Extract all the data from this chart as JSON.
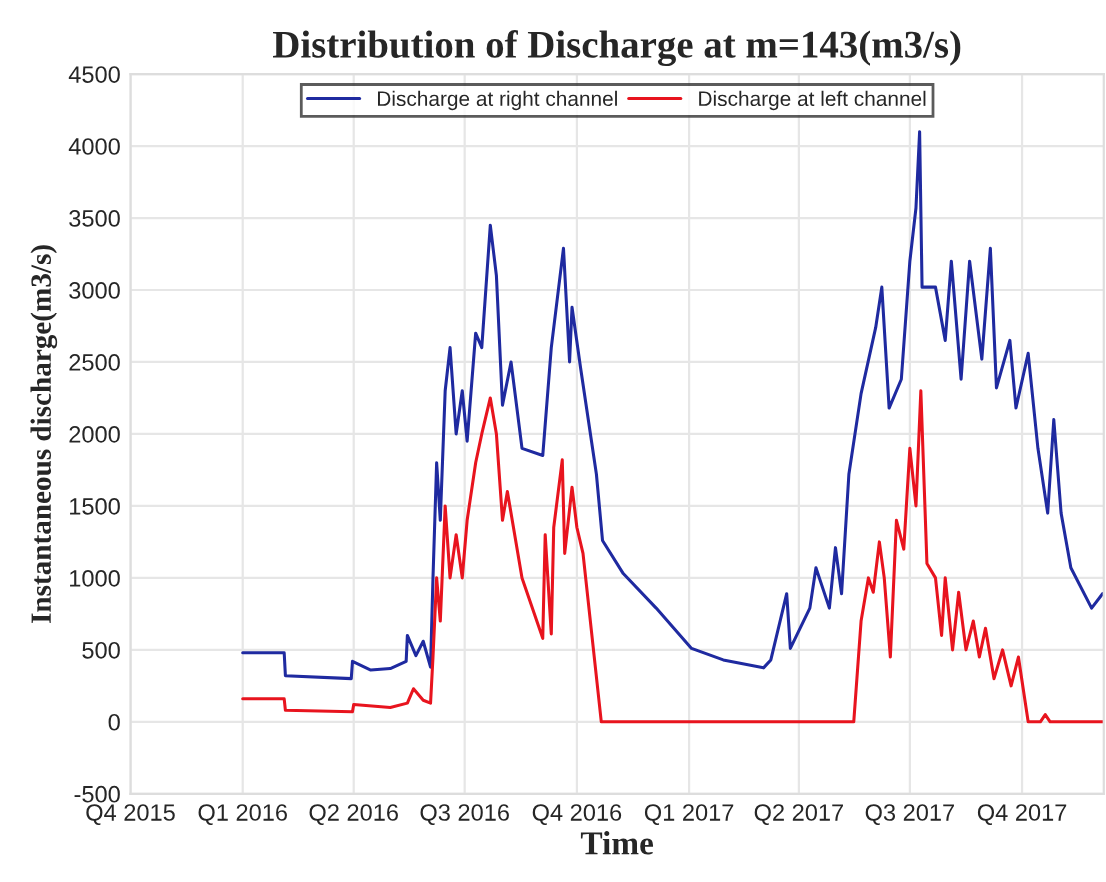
{
  "chart_data": {
    "type": "line",
    "title": "Distribution of Discharge at m=143(m3/s)",
    "xlabel": "Time",
    "ylabel": "Instantaneous discharge(m3/s)",
    "xlim": [
      "2015-10-01",
      "2017-12-07"
    ],
    "xticks": [
      {
        "value": "2015-10-01",
        "label": "Q4 2015"
      },
      {
        "value": "2016-01-01",
        "label": "Q1 2016"
      },
      {
        "value": "2016-04-01",
        "label": "Q2 2016"
      },
      {
        "value": "2016-07-01",
        "label": "Q3 2016"
      },
      {
        "value": "2016-10-01",
        "label": "Q4 2016"
      },
      {
        "value": "2017-01-01",
        "label": "Q1 2017"
      },
      {
        "value": "2017-04-01",
        "label": "Q2 2017"
      },
      {
        "value": "2017-07-01",
        "label": "Q3 2017"
      },
      {
        "value": "2017-10-01",
        "label": "Q4 2017"
      }
    ],
    "ylim": [
      -500,
      4500
    ],
    "yticks": [
      -500,
      0,
      500,
      1000,
      1500,
      2000,
      2500,
      3000,
      3500,
      4000,
      4500
    ],
    "grid": true,
    "legend": "top",
    "line_style": "solid",
    "marker": "none",
    "series": [
      {
        "name": "Discharge at right channel",
        "color": "#1f2aa0",
        "x": [
          "2016-01-01",
          "2016-02-04",
          "2016-02-05",
          "2016-03-30",
          "2016-03-31",
          "2016-04-15",
          "2016-05-01",
          "2016-05-14",
          "2016-05-15",
          "2016-05-22",
          "2016-05-28",
          "2016-06-03",
          "2016-06-05",
          "2016-06-08",
          "2016-06-11",
          "2016-06-15",
          "2016-06-19",
          "2016-06-24",
          "2016-06-29",
          "2016-07-03",
          "2016-07-10",
          "2016-07-15",
          "2016-07-22",
          "2016-07-27",
          "2016-08-01",
          "2016-08-08",
          "2016-08-17",
          "2016-09-03",
          "2016-09-10",
          "2016-09-20",
          "2016-09-25",
          "2016-09-27",
          "2016-10-04",
          "2016-10-17",
          "2016-10-22",
          "2016-11-08",
          "2016-12-05",
          "2017-01-03",
          "2017-01-29",
          "2017-03-03",
          "2017-03-09",
          "2017-03-22",
          "2017-03-25",
          "2017-04-10",
          "2017-04-15",
          "2017-04-26",
          "2017-05-01",
          "2017-05-06",
          "2017-05-12",
          "2017-05-22",
          "2017-06-03",
          "2017-06-08",
          "2017-06-14",
          "2017-06-24",
          "2017-07-01",
          "2017-07-06",
          "2017-07-09",
          "2017-07-11",
          "2017-07-22",
          "2017-07-30",
          "2017-08-04",
          "2017-08-12",
          "2017-08-19",
          "2017-08-29",
          "2017-09-05",
          "2017-09-10",
          "2017-09-21",
          "2017-09-26",
          "2017-10-06",
          "2017-10-14",
          "2017-10-22",
          "2017-10-27",
          "2017-11-02",
          "2017-11-10",
          "2017-11-27",
          "2017-12-06"
        ],
        "values": [
          480,
          480,
          320,
          300,
          420,
          360,
          370,
          420,
          600,
          460,
          560,
          380,
          1000,
          1800,
          1400,
          2300,
          2600,
          2000,
          2300,
          1950,
          2700,
          2600,
          3450,
          3100,
          2200,
          2500,
          1900,
          1850,
          2600,
          3290,
          2500,
          2880,
          2460,
          1720,
          1260,
          1030,
          790,
          510,
          430,
          375,
          430,
          890,
          510,
          790,
          1070,
          790,
          1210,
          890,
          1720,
          2280,
          2740,
          3020,
          2180,
          2380,
          3200,
          3570,
          4100,
          3020,
          3020,
          2650,
          3200,
          2380,
          3200,
          2520,
          3290,
          2320,
          2650,
          2180,
          2560,
          1900,
          1450,
          2100,
          1450,
          1070,
          790,
          890
        ]
      },
      {
        "name": "Discharge at left channel",
        "color": "#e8141e",
        "x": [
          "2016-01-01",
          "2016-02-04",
          "2016-02-05",
          "2016-03-31",
          "2016-04-01",
          "2016-05-01",
          "2016-05-15",
          "2016-05-20",
          "2016-05-28",
          "2016-06-03",
          "2016-06-05",
          "2016-06-08",
          "2016-06-11",
          "2016-06-15",
          "2016-06-19",
          "2016-06-24",
          "2016-06-29",
          "2016-07-03",
          "2016-07-10",
          "2016-07-15",
          "2016-07-22",
          "2016-07-27",
          "2016-08-01",
          "2016-08-05",
          "2016-08-17",
          "2016-09-03",
          "2016-09-05",
          "2016-09-10",
          "2016-09-12",
          "2016-09-19",
          "2016-09-21",
          "2016-09-27",
          "2016-10-01",
          "2016-10-06",
          "2016-10-21",
          "2017-05-16",
          "2017-05-22",
          "2017-05-28",
          "2017-06-01",
          "2017-06-06",
          "2017-06-10",
          "2017-06-15",
          "2017-06-20",
          "2017-06-26",
          "2017-07-01",
          "2017-07-06",
          "2017-07-10",
          "2017-07-15",
          "2017-07-22",
          "2017-07-27",
          "2017-07-30",
          "2017-08-05",
          "2017-08-10",
          "2017-08-16",
          "2017-08-22",
          "2017-08-27",
          "2017-09-01",
          "2017-09-08",
          "2017-09-15",
          "2017-09-22",
          "2017-09-28",
          "2017-10-06",
          "2017-10-16",
          "2017-10-20",
          "2017-10-24",
          "2017-12-07"
        ],
        "values": [
          160,
          160,
          80,
          70,
          120,
          100,
          130,
          230,
          150,
          130,
          450,
          1000,
          700,
          1500,
          1000,
          1300,
          1000,
          1400,
          1800,
          2000,
          2250,
          2000,
          1400,
          1600,
          1000,
          580,
          1300,
          610,
          1350,
          1820,
          1170,
          1630,
          1350,
          1170,
          0,
          0,
          700,
          1000,
          900,
          1250,
          1000,
          450,
          1400,
          1200,
          1900,
          1500,
          2300,
          1100,
          1000,
          600,
          1000,
          500,
          900,
          500,
          700,
          450,
          650,
          300,
          500,
          250,
          450,
          0,
          0,
          50,
          0,
          0
        ]
      }
    ]
  }
}
